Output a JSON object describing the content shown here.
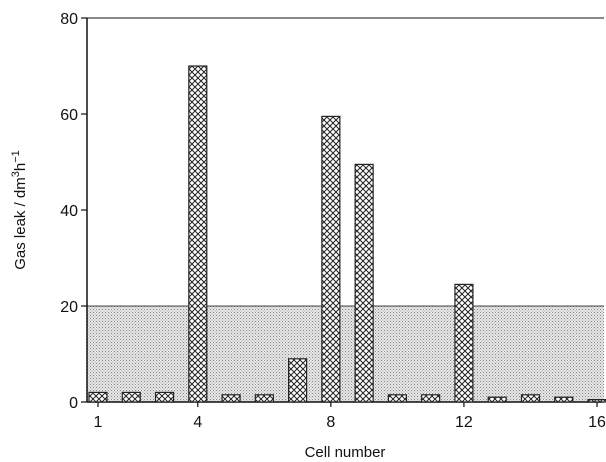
{
  "chart_data": {
    "type": "bar",
    "title": "",
    "xlabel": "Cell number",
    "ylabel_parts": {
      "main": "Gas leak / dm",
      "exp1": "3",
      "mid": "h",
      "exp2": "−1"
    },
    "ylim": [
      0,
      80
    ],
    "yticks": [
      0,
      20,
      40,
      60,
      80
    ],
    "xticks": [
      1,
      4,
      8,
      12,
      16
    ],
    "categories": [
      1,
      2,
      3,
      4,
      5,
      6,
      7,
      8,
      9,
      10,
      11,
      12,
      13,
      14,
      15,
      16
    ],
    "values": [
      2,
      2,
      2,
      70,
      1.5,
      1.5,
      9,
      59.5,
      49.5,
      1.5,
      1.5,
      24.5,
      1,
      1.5,
      1,
      0.5
    ],
    "shaded_band": {
      "from": 0,
      "to": 20
    },
    "grid": false,
    "legend": "none",
    "colors": {
      "band": "#c9c9c9",
      "bar_hatch": "#222222",
      "axis": "#111111"
    }
  }
}
